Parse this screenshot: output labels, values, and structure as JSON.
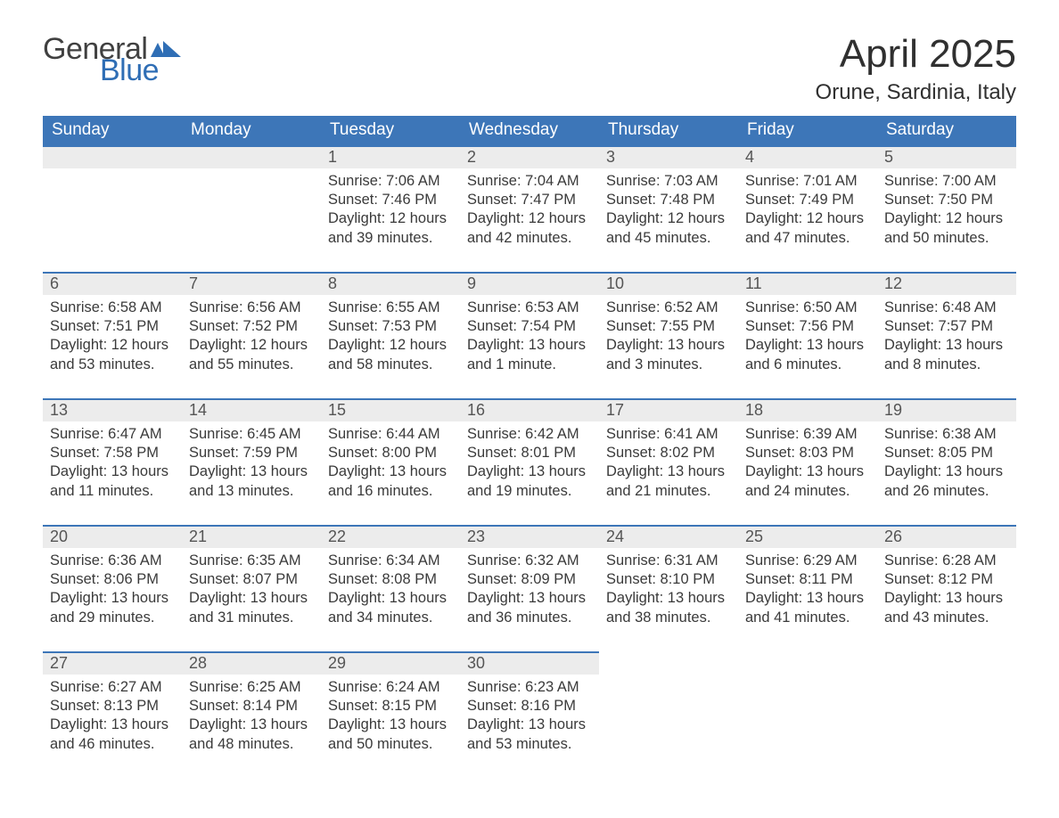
{
  "brand": {
    "word1": "General",
    "word2": "Blue"
  },
  "title": "April 2025",
  "location": "Orune, Sardinia, Italy",
  "style": {
    "header_bg": "#3d76b8",
    "header_fg": "#ffffff",
    "daynum_bg": "#ececec",
    "row_border": "#3d76b8",
    "text_color": "#333333",
    "title_fontsize": 44,
    "location_fontsize": 24,
    "header_fontsize": 19,
    "body_fontsize": 16.5
  },
  "day_headers": [
    "Sunday",
    "Monday",
    "Tuesday",
    "Wednesday",
    "Thursday",
    "Friday",
    "Saturday"
  ],
  "weeks": [
    [
      null,
      null,
      {
        "n": "1",
        "sr": "7:06 AM",
        "ss": "7:46 PM",
        "d": "12 hours and 39 minutes."
      },
      {
        "n": "2",
        "sr": "7:04 AM",
        "ss": "7:47 PM",
        "d": "12 hours and 42 minutes."
      },
      {
        "n": "3",
        "sr": "7:03 AM",
        "ss": "7:48 PM",
        "d": "12 hours and 45 minutes."
      },
      {
        "n": "4",
        "sr": "7:01 AM",
        "ss": "7:49 PM",
        "d": "12 hours and 47 minutes."
      },
      {
        "n": "5",
        "sr": "7:00 AM",
        "ss": "7:50 PM",
        "d": "12 hours and 50 minutes."
      }
    ],
    [
      {
        "n": "6",
        "sr": "6:58 AM",
        "ss": "7:51 PM",
        "d": "12 hours and 53 minutes."
      },
      {
        "n": "7",
        "sr": "6:56 AM",
        "ss": "7:52 PM",
        "d": "12 hours and 55 minutes."
      },
      {
        "n": "8",
        "sr": "6:55 AM",
        "ss": "7:53 PM",
        "d": "12 hours and 58 minutes."
      },
      {
        "n": "9",
        "sr": "6:53 AM",
        "ss": "7:54 PM",
        "d": "13 hours and 1 minute."
      },
      {
        "n": "10",
        "sr": "6:52 AM",
        "ss": "7:55 PM",
        "d": "13 hours and 3 minutes."
      },
      {
        "n": "11",
        "sr": "6:50 AM",
        "ss": "7:56 PM",
        "d": "13 hours and 6 minutes."
      },
      {
        "n": "12",
        "sr": "6:48 AM",
        "ss": "7:57 PM",
        "d": "13 hours and 8 minutes."
      }
    ],
    [
      {
        "n": "13",
        "sr": "6:47 AM",
        "ss": "7:58 PM",
        "d": "13 hours and 11 minutes."
      },
      {
        "n": "14",
        "sr": "6:45 AM",
        "ss": "7:59 PM",
        "d": "13 hours and 13 minutes."
      },
      {
        "n": "15",
        "sr": "6:44 AM",
        "ss": "8:00 PM",
        "d": "13 hours and 16 minutes."
      },
      {
        "n": "16",
        "sr": "6:42 AM",
        "ss": "8:01 PM",
        "d": "13 hours and 19 minutes."
      },
      {
        "n": "17",
        "sr": "6:41 AM",
        "ss": "8:02 PM",
        "d": "13 hours and 21 minutes."
      },
      {
        "n": "18",
        "sr": "6:39 AM",
        "ss": "8:03 PM",
        "d": "13 hours and 24 minutes."
      },
      {
        "n": "19",
        "sr": "6:38 AM",
        "ss": "8:05 PM",
        "d": "13 hours and 26 minutes."
      }
    ],
    [
      {
        "n": "20",
        "sr": "6:36 AM",
        "ss": "8:06 PM",
        "d": "13 hours and 29 minutes."
      },
      {
        "n": "21",
        "sr": "6:35 AM",
        "ss": "8:07 PM",
        "d": "13 hours and 31 minutes."
      },
      {
        "n": "22",
        "sr": "6:34 AM",
        "ss": "8:08 PM",
        "d": "13 hours and 34 minutes."
      },
      {
        "n": "23",
        "sr": "6:32 AM",
        "ss": "8:09 PM",
        "d": "13 hours and 36 minutes."
      },
      {
        "n": "24",
        "sr": "6:31 AM",
        "ss": "8:10 PM",
        "d": "13 hours and 38 minutes."
      },
      {
        "n": "25",
        "sr": "6:29 AM",
        "ss": "8:11 PM",
        "d": "13 hours and 41 minutes."
      },
      {
        "n": "26",
        "sr": "6:28 AM",
        "ss": "8:12 PM",
        "d": "13 hours and 43 minutes."
      }
    ],
    [
      {
        "n": "27",
        "sr": "6:27 AM",
        "ss": "8:13 PM",
        "d": "13 hours and 46 minutes."
      },
      {
        "n": "28",
        "sr": "6:25 AM",
        "ss": "8:14 PM",
        "d": "13 hours and 48 minutes."
      },
      {
        "n": "29",
        "sr": "6:24 AM",
        "ss": "8:15 PM",
        "d": "13 hours and 50 minutes."
      },
      {
        "n": "30",
        "sr": "6:23 AM",
        "ss": "8:16 PM",
        "d": "13 hours and 53 minutes."
      },
      null,
      null,
      null
    ]
  ],
  "labels": {
    "sunrise": "Sunrise: ",
    "sunset": "Sunset: ",
    "daylight": "Daylight: "
  }
}
